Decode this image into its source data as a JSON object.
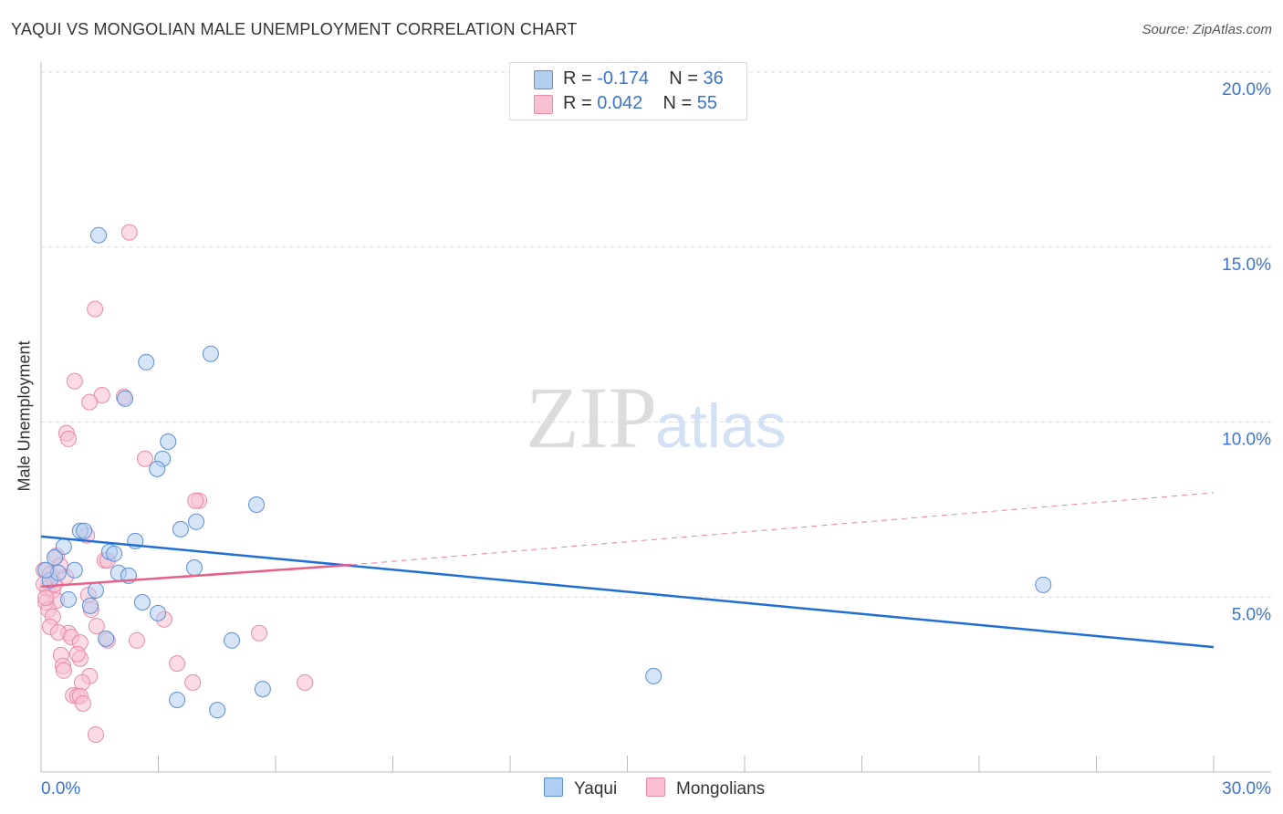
{
  "title": "YAQUI VS MONGOLIAN MALE UNEMPLOYMENT CORRELATION CHART",
  "source": "Source: ZipAtlas.com",
  "watermark": "ZIPatlas",
  "legend": {
    "rows": [
      {
        "r_label": "R =",
        "r": "-0.174",
        "n_label": "N =",
        "n": "36"
      },
      {
        "r_label": "R =",
        "r": "0.042",
        "n_label": "N =",
        "n": "55"
      }
    ]
  },
  "chart_data": {
    "type": "scatter",
    "title": "YAQUI VS MONGOLIAN MALE UNEMPLOYMENT CORRELATION CHART",
    "xlabel": "",
    "ylabel": "Male Unemployment",
    "xlim": [
      0,
      30
    ],
    "ylim": [
      0,
      20
    ],
    "x_tick_labels": [
      "0.0%",
      "30.0%"
    ],
    "y_tick_labels": [
      "5.0%",
      "10.0%",
      "15.0%",
      "20.0%"
    ],
    "y_ticks": [
      5,
      10,
      15,
      20
    ],
    "grid": true,
    "legend_position": "bottom-center",
    "colors": {
      "yaqui": "#5b8fd9",
      "yaqui_fill": "#b3cdf1",
      "yaqui_line": "#1f6fd6",
      "mongolians": "#e98aa8",
      "mongolians_fill": "#f8c0d0",
      "mongolians_line": "#e8608a",
      "label": "#3a73d1"
    },
    "series": [
      {
        "name": "Yaqui",
        "r": -0.174,
        "n": 36,
        "trend": {
          "x": [
            0,
            30
          ],
          "y": [
            6.73,
            3.57
          ]
        },
        "points": [
          [
            1.47,
            15.34
          ],
          [
            2.69,
            11.71
          ],
          [
            4.34,
            11.95
          ],
          [
            2.15,
            10.67
          ],
          [
            3.25,
            9.44
          ],
          [
            3.11,
            8.95
          ],
          [
            2.97,
            8.66
          ],
          [
            5.51,
            7.64
          ],
          [
            3.97,
            7.15
          ],
          [
            3.57,
            6.94
          ],
          [
            2.41,
            6.6
          ],
          [
            1.0,
            6.89
          ],
          [
            1.1,
            6.89
          ],
          [
            1.75,
            6.29
          ],
          [
            1.87,
            6.24
          ],
          [
            0.58,
            6.44
          ],
          [
            0.35,
            6.13
          ],
          [
            0.86,
            5.77
          ],
          [
            1.98,
            5.69
          ],
          [
            2.24,
            5.61
          ],
          [
            3.92,
            5.84
          ],
          [
            0.23,
            5.48
          ],
          [
            0.44,
            5.69
          ],
          [
            1.4,
            5.19
          ],
          [
            0.7,
            4.93
          ],
          [
            2.59,
            4.85
          ],
          [
            1.26,
            4.75
          ],
          [
            2.99,
            4.54
          ],
          [
            4.88,
            3.76
          ],
          [
            1.66,
            3.81
          ],
          [
            3.48,
            2.06
          ],
          [
            4.51,
            1.77
          ],
          [
            5.67,
            2.37
          ],
          [
            15.67,
            2.74
          ],
          [
            25.64,
            5.35
          ],
          [
            0.12,
            5.77
          ]
        ]
      },
      {
        "name": "Mongolians",
        "r": 0.042,
        "n": 55,
        "trend": {
          "x": [
            0,
            7.94,
            30
          ],
          "y": [
            5.3,
            5.92,
            7.98
          ]
        },
        "points": [
          [
            2.26,
            15.42
          ],
          [
            1.38,
            13.23
          ],
          [
            0.86,
            11.17
          ],
          [
            1.56,
            10.77
          ],
          [
            2.12,
            10.72
          ],
          [
            1.24,
            10.57
          ],
          [
            0.65,
            9.68
          ],
          [
            0.7,
            9.52
          ],
          [
            2.66,
            8.95
          ],
          [
            4.04,
            7.75
          ],
          [
            3.95,
            7.75
          ],
          [
            1.17,
            6.76
          ],
          [
            0.4,
            6.18
          ],
          [
            1.63,
            6.05
          ],
          [
            1.7,
            6.05
          ],
          [
            0.63,
            5.58
          ],
          [
            0.07,
            5.77
          ],
          [
            0.23,
            5.66
          ],
          [
            0.16,
            5.24
          ],
          [
            0.3,
            5.19
          ],
          [
            0.35,
            5.37
          ],
          [
            0.4,
            4.9
          ],
          [
            0.12,
            4.85
          ],
          [
            1.21,
            5.06
          ],
          [
            0.19,
            4.64
          ],
          [
            0.3,
            4.44
          ],
          [
            1.28,
            4.64
          ],
          [
            3.15,
            4.36
          ],
          [
            0.23,
            4.15
          ],
          [
            1.42,
            4.17
          ],
          [
            0.7,
            3.97
          ],
          [
            0.44,
            3.99
          ],
          [
            0.77,
            3.86
          ],
          [
            1.0,
            3.7
          ],
          [
            1.7,
            3.76
          ],
          [
            2.45,
            3.76
          ],
          [
            5.58,
            3.97
          ],
          [
            0.51,
            3.34
          ],
          [
            1.0,
            3.24
          ],
          [
            0.93,
            3.37
          ],
          [
            0.56,
            3.03
          ],
          [
            0.58,
            2.9
          ],
          [
            1.24,
            2.74
          ],
          [
            3.48,
            3.1
          ],
          [
            1.05,
            2.56
          ],
          [
            3.88,
            2.56
          ],
          [
            6.75,
            2.56
          ],
          [
            0.82,
            2.19
          ],
          [
            0.93,
            2.17
          ],
          [
            1.0,
            2.17
          ],
          [
            1.07,
            1.96
          ],
          [
            1.4,
            1.07
          ],
          [
            0.07,
            5.37
          ],
          [
            0.12,
            4.98
          ],
          [
            0.49,
            5.9
          ]
        ]
      }
    ]
  }
}
